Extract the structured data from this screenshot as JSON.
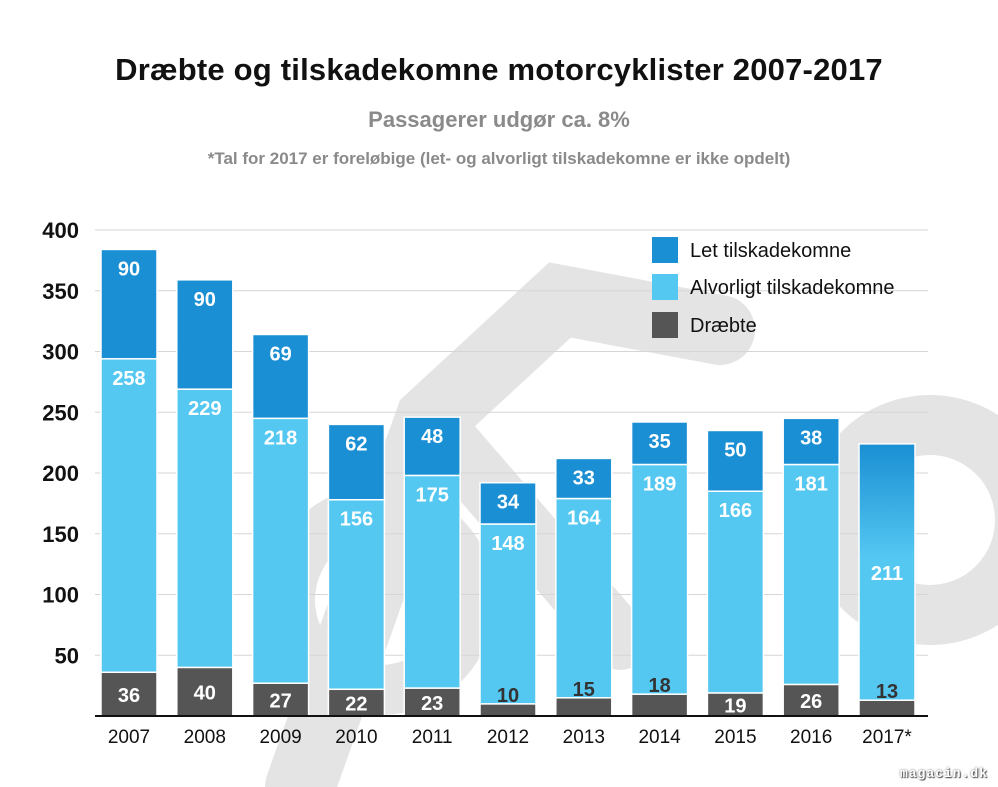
{
  "chart_data": {
    "type": "bar",
    "stacked": true,
    "title": "Dræbte og tilskadekomne motorcyklister 2007-2017",
    "subtitle": "Passagerer udgør ca. 8%",
    "note": "*Tal for 2017 er foreløbige (let- og alvorligt tilskadekomne er ikke opdelt)",
    "categories": [
      "2007",
      "2008",
      "2009",
      "2010",
      "2011",
      "2012",
      "2013",
      "2014",
      "2015",
      "2016",
      "2017*"
    ],
    "series": [
      {
        "name": "Dræbte",
        "color": "#555555",
        "values": [
          36,
          40,
          27,
          22,
          23,
          10,
          15,
          18,
          19,
          26,
          13
        ]
      },
      {
        "name": "Alvorligt tilskadekomne",
        "color": "#55c8f2",
        "values": [
          258,
          229,
          218,
          156,
          175,
          148,
          164,
          189,
          166,
          181,
          211
        ]
      },
      {
        "name": "Let tilskadekomne",
        "color": "#1a8fd3",
        "values": [
          90,
          90,
          69,
          62,
          48,
          34,
          33,
          35,
          50,
          38,
          null
        ]
      }
    ],
    "legend_order": [
      "Let tilskadekomne",
      "Alvorligt tilskadekomne",
      "Dræbte"
    ],
    "legend_position": "top-right",
    "ylim": [
      0,
      400
    ],
    "yticks": [
      50,
      100,
      150,
      200,
      250,
      300,
      350,
      400
    ],
    "grid": true,
    "xlabel": "",
    "ylabel": ""
  },
  "watermark": "magacin.dk"
}
